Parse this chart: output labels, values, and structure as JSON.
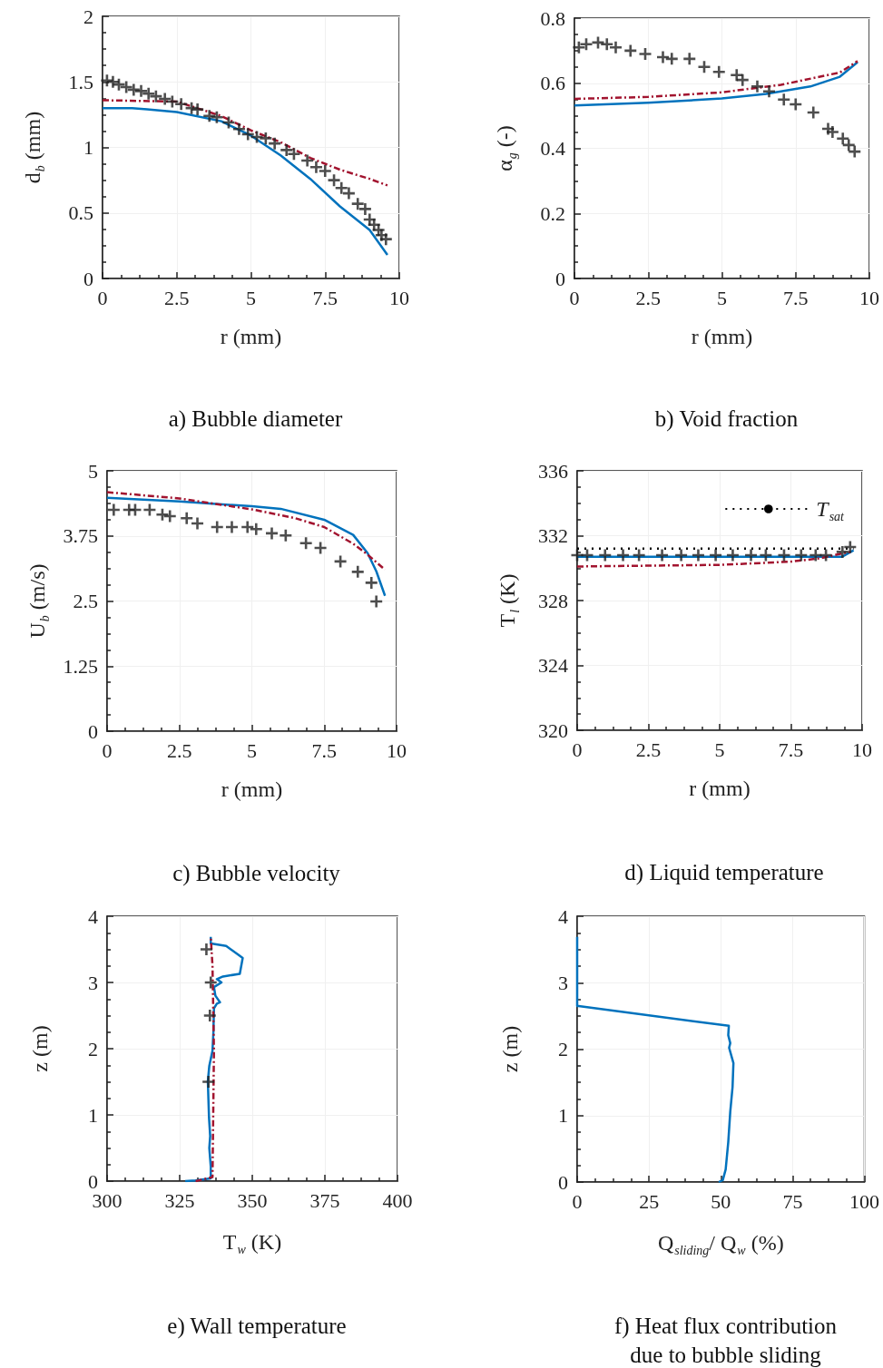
{
  "chart_data": [
    {
      "type": "line",
      "title": "a) Bubble diameter",
      "xlabel": "r (mm)",
      "ylabel": "d$_{b}$ (mm)",
      "xlim": [
        0,
        10
      ],
      "xticks": [
        0,
        2.5,
        5,
        7.5,
        10
      ],
      "ylim": [
        0,
        2
      ],
      "yticks": [
        0,
        0.5,
        1,
        1.5,
        2
      ],
      "grid": true,
      "series": [
        {
          "color": "#0072bd",
          "line_style": "solid",
          "x": [
            0,
            1,
            1.5,
            2.5,
            4,
            5,
            6,
            7,
            8,
            9,
            9.6
          ],
          "values": [
            1.3,
            1.3,
            1.29,
            1.27,
            1.2,
            1.09,
            0.94,
            0.76,
            0.55,
            0.37,
            0.18
          ]
        },
        {
          "color": "#a2142f",
          "line_style": "dashdot",
          "x": [
            0,
            2.5,
            4,
            5,
            6,
            7,
            8,
            9,
            9.6
          ],
          "values": [
            1.36,
            1.35,
            1.24,
            1.13,
            1.04,
            0.92,
            0.83,
            0.76,
            0.71
          ]
        },
        {
          "type": "scatter",
          "marker": "cross",
          "color": "#222222",
          "x": [
            0.15,
            0.35,
            0.55,
            0.8,
            1.05,
            1.3,
            1.55,
            1.8,
            2.1,
            2.35,
            2.65,
            3.0,
            3.2,
            3.6,
            3.85,
            4.25,
            4.6,
            4.9,
            5.2,
            5.5,
            5.8,
            6.2,
            6.45,
            6.9,
            7.2,
            7.5,
            7.8,
            8.05,
            8.3,
            8.6,
            8.85,
            9.0,
            9.15,
            9.3,
            9.4,
            9.55
          ],
          "values": [
            1.51,
            1.5,
            1.48,
            1.46,
            1.44,
            1.43,
            1.41,
            1.39,
            1.37,
            1.35,
            1.33,
            1.3,
            1.29,
            1.24,
            1.23,
            1.19,
            1.14,
            1.1,
            1.08,
            1.07,
            1.03,
            0.98,
            0.95,
            0.9,
            0.85,
            0.82,
            0.75,
            0.69,
            0.65,
            0.57,
            0.53,
            0.45,
            0.41,
            0.37,
            0.33,
            0.3
          ]
        }
      ]
    },
    {
      "type": "line",
      "title": "b) Void fraction",
      "xlabel": "r (mm)",
      "ylabel": "α$_{g}$ (-)",
      "xlim": [
        0,
        10
      ],
      "xticks": [
        0,
        2.5,
        5,
        7.5,
        10
      ],
      "ylim": [
        0,
        0.8
      ],
      "yticks": [
        0,
        0.2,
        0.4,
        0.6,
        0.8
      ],
      "grid": true,
      "series": [
        {
          "color": "#0072bd",
          "line_style": "solid",
          "x": [
            0,
            2.5,
            5,
            6.5,
            8,
            9,
            9.6
          ],
          "values": [
            0.532,
            0.54,
            0.553,
            0.567,
            0.59,
            0.62,
            0.665
          ]
        },
        {
          "color": "#a2142f",
          "line_style": "dashdot",
          "x": [
            0,
            2.5,
            5,
            7,
            9,
            9.6
          ],
          "values": [
            0.552,
            0.558,
            0.572,
            0.595,
            0.633,
            0.668
          ]
        },
        {
          "type": "scatter",
          "marker": "cross",
          "color": "#222222",
          "x": [
            0.15,
            0.4,
            0.8,
            1.1,
            1.4,
            1.9,
            2.4,
            3.0,
            3.3,
            3.9,
            4.4,
            4.9,
            5.5,
            5.7,
            6.2,
            6.6,
            7.1,
            7.5,
            8.1,
            8.6,
            8.75,
            9.1,
            9.3,
            9.5
          ],
          "values": [
            0.71,
            0.72,
            0.725,
            0.72,
            0.71,
            0.7,
            0.69,
            0.68,
            0.675,
            0.675,
            0.65,
            0.635,
            0.625,
            0.61,
            0.59,
            0.575,
            0.55,
            0.535,
            0.51,
            0.46,
            0.45,
            0.43,
            0.41,
            0.39
          ]
        }
      ]
    },
    {
      "type": "line",
      "title": "c) Bubble velocity",
      "xlabel": "r (mm)",
      "ylabel": "U$_{b}$ (m/s)",
      "xlim": [
        0,
        10
      ],
      "xticks": [
        0,
        2.5,
        5,
        7.5,
        10
      ],
      "ylim": [
        0,
        5
      ],
      "yticks": [
        0,
        1.25,
        2.5,
        3.75,
        5
      ],
      "grid": true,
      "series": [
        {
          "color": "#0072bd",
          "line_style": "solid",
          "x": [
            0,
            2.5,
            5,
            6,
            7.5,
            8.5,
            9,
            9.3,
            9.6
          ],
          "values": [
            4.48,
            4.41,
            4.32,
            4.27,
            4.06,
            3.77,
            3.42,
            3.07,
            2.6
          ]
        },
        {
          "color": "#a2142f",
          "line_style": "dashdot",
          "x": [
            0,
            2.5,
            5,
            6.5,
            7.5,
            8.5,
            9,
            9.6
          ],
          "values": [
            4.59,
            4.47,
            4.26,
            4.09,
            3.92,
            3.6,
            3.39,
            3.1
          ]
        },
        {
          "type": "scatter",
          "marker": "cross",
          "color": "#222222",
          "x": [
            0.23,
            0.76,
            0.97,
            1.47,
            1.91,
            2.17,
            2.75,
            3.12,
            3.8,
            4.31,
            4.85,
            5.15,
            5.69,
            6.17,
            6.87,
            7.37,
            8.06,
            8.66,
            9.13,
            9.3
          ],
          "values": [
            4.25,
            4.25,
            4.25,
            4.25,
            4.16,
            4.13,
            4.09,
            3.99,
            3.92,
            3.92,
            3.92,
            3.88,
            3.8,
            3.76,
            3.61,
            3.52,
            3.26,
            3.06,
            2.85,
            2.49
          ]
        }
      ]
    },
    {
      "type": "line",
      "title": "d) Liquid temperature",
      "xlabel": "r (mm)",
      "ylabel": "T$_{l}$ (K)",
      "xlim": [
        0,
        10
      ],
      "xticks": [
        0,
        2.5,
        5,
        7.5,
        10
      ],
      "ylim": [
        320,
        336
      ],
      "yticks": [
        320,
        324,
        328,
        332,
        336
      ],
      "grid": true,
      "legend": "top right",
      "series": [
        {
          "name": "T$_{sat}$",
          "color": "#000000",
          "line_style": "dotted",
          "x": [
            0,
            9.7
          ],
          "values": [
            331.2,
            331.2
          ]
        },
        {
          "color": "#0072bd",
          "line_style": "solid",
          "x": [
            0,
            5,
            9.3,
            9.7
          ],
          "values": [
            330.7,
            330.7,
            330.7,
            331.1
          ]
        },
        {
          "color": "#a2142f",
          "line_style": "dashdot",
          "x": [
            0,
            5,
            7.5,
            8.5,
            9.3,
            9.6
          ],
          "values": [
            330.1,
            330.2,
            330.4,
            330.6,
            330.9,
            331
          ]
        },
        {
          "type": "scatter",
          "marker": "cross",
          "color": "#222222",
          "x": [
            0,
            0.35,
            0.98,
            1.61,
            2.17,
            2.98,
            3.65,
            4.25,
            4.86,
            5.46,
            6.1,
            6.62,
            7.26,
            7.86,
            8.37,
            8.73,
            9.31,
            9.58
          ],
          "values": [
            330.8,
            330.8,
            330.8,
            330.8,
            330.8,
            330.8,
            330.8,
            330.8,
            330.8,
            330.8,
            330.8,
            330.8,
            330.8,
            330.8,
            330.8,
            330.8,
            331,
            331.3
          ]
        }
      ]
    },
    {
      "type": "line",
      "title": "e) Wall temperature",
      "xlabel": "T$_{w}$ (K)",
      "ylabel": "z (m)",
      "xlim": [
        300,
        400
      ],
      "xticks": [
        300,
        325,
        350,
        375,
        400
      ],
      "ylim": [
        0,
        4
      ],
      "yticks": [
        0,
        1,
        2,
        3,
        4
      ],
      "grid": true,
      "series": [
        {
          "color": "#0072bd",
          "line_style": "solid",
          "x": [
            326.9,
            330.5,
            335.7,
            335.7,
            335.2,
            335.5,
            335.1,
            334.9,
            334.7,
            335.2,
            336.3,
            336.6,
            336.8,
            337.8,
            338.9,
            337.3,
            336.8,
            339.4,
            337.8,
            339.9,
            345.7,
            346.7,
            345.1,
            341,
            335.7,
            335.7
          ],
          "values": [
            0,
            0.01,
            0.04,
            0.22,
            0.5,
            0.68,
            0.96,
            1.23,
            1.51,
            1.74,
            1.97,
            2.24,
            2.61,
            2.68,
            2.7,
            2.8,
            2.93,
            3,
            3.05,
            3.09,
            3.13,
            3.37,
            3.42,
            3.55,
            3.59,
            3.69
          ]
        },
        {
          "color": "#a2142f",
          "line_style": "dashdot",
          "x": [
            330.5,
            336.3,
            336.8,
            336.3,
            335.7
          ],
          "values": [
            0,
            0.06,
            1.97,
            3.25,
            3.69
          ]
        },
        {
          "type": "scatter",
          "marker": "cross",
          "color": "#222222",
          "x": [
            334.2,
            335.7,
            335.4,
            334.9
          ],
          "values": [
            3.5,
            3,
            2.5,
            1.5
          ]
        }
      ]
    },
    {
      "type": "line",
      "title": "f) Heat flux contribution\ndue to bubble sliding",
      "xlabel": "Q$_{sliding}$/ Q$_{w}$ (%)",
      "ylabel": "z (m)",
      "xlim": [
        0,
        100
      ],
      "xticks": [
        0,
        25,
        50,
        75,
        100
      ],
      "ylim": [
        0,
        4
      ],
      "yticks": [
        0,
        1,
        2,
        3,
        4
      ],
      "grid": true,
      "series": [
        {
          "color": "#0072bd",
          "line_style": "solid",
          "x": [
            49.3,
            50.7,
            51.7,
            52.6,
            53.3,
            54.1,
            54.4,
            52.9,
            53.3,
            52.6,
            52.8,
            0.5,
            0,
            0
          ],
          "values": [
            0,
            0.03,
            0.19,
            0.6,
            1.06,
            1.43,
            1.79,
            2.02,
            2.09,
            2.21,
            2.35,
            2.65,
            2.65,
            3.69
          ]
        }
      ]
    }
  ]
}
